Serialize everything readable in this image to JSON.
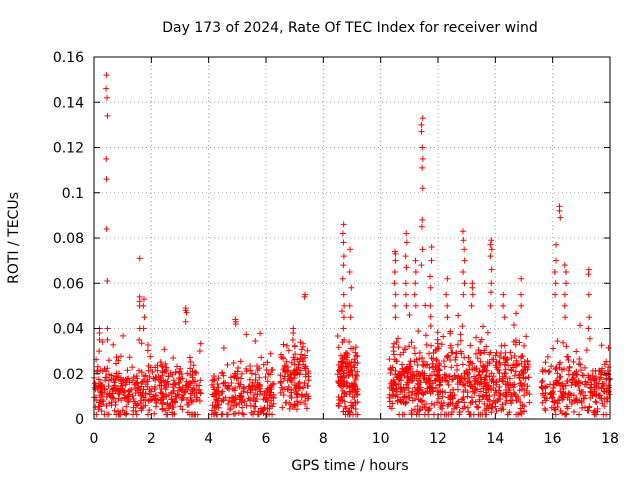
{
  "chart_data": {
    "type": "scatter",
    "title": "Day 173 of 2024, Rate Of TEC Index for receiver wind",
    "xlabel": "GPS time / hours",
    "ylabel": "ROTI / TECUs",
    "xlim": [
      0,
      18
    ],
    "ylim": [
      0,
      0.16
    ],
    "xticks": [
      0,
      2,
      4,
      6,
      8,
      10,
      12,
      14,
      16,
      18
    ],
    "xtick_labels": [
      "0",
      "2",
      "4",
      "6",
      "8",
      "10",
      "12",
      "14",
      "16",
      "18"
    ],
    "yticks": [
      0,
      0.02,
      0.04,
      0.06,
      0.08,
      0.1,
      0.12,
      0.14,
      0.16
    ],
    "ytick_labels": [
      "0",
      "0.02",
      "0.04",
      "0.06",
      "0.08",
      "0.1",
      "0.12",
      "0.14",
      "0.16"
    ],
    "grid": true,
    "marker": "+",
    "color": "#ff0000",
    "series": [
      {
        "name": "ROTI",
        "clusters": [
          {
            "x0": 0.0,
            "x1": 3.75,
            "base": 0.012,
            "spread": 0.009,
            "n": 420
          },
          {
            "x0": 4.1,
            "x1": 6.3,
            "base": 0.011,
            "spread": 0.008,
            "n": 230
          },
          {
            "x0": 6.5,
            "x1": 7.5,
            "base": 0.016,
            "spread": 0.01,
            "n": 140
          },
          {
            "x0": 8.5,
            "x1": 9.2,
            "base": 0.016,
            "spread": 0.012,
            "n": 150
          },
          {
            "x0": 10.3,
            "x1": 15.2,
            "base": 0.016,
            "spread": 0.012,
            "n": 700
          },
          {
            "x0": 15.6,
            "x1": 18.0,
            "base": 0.013,
            "spread": 0.009,
            "n": 260
          }
        ],
        "peaks": [
          {
            "x": 0.45,
            "y": [
              0.152,
              0.146,
              0.142,
              0.134,
              0.115,
              0.106,
              0.084,
              0.061,
              0.04,
              0.035
            ]
          },
          {
            "x": 0.2,
            "y": [
              0.04,
              0.038,
              0.035,
              0.03
            ]
          },
          {
            "x": 1.6,
            "y": [
              0.071,
              0.054,
              0.052,
              0.05,
              0.04,
              0.035
            ]
          },
          {
            "x": 1.75,
            "y": [
              0.053,
              0.05,
              0.045,
              0.04
            ]
          },
          {
            "x": 3.2,
            "y": [
              0.049,
              0.048,
              0.047,
              0.043
            ]
          },
          {
            "x": 4.95,
            "y": [
              0.044,
              0.043,
              0.042
            ]
          },
          {
            "x": 7.35,
            "y": [
              0.055,
              0.054
            ]
          },
          {
            "x": 6.95,
            "y": [
              0.04,
              0.038,
              0.035
            ]
          },
          {
            "x": 8.7,
            "y": [
              0.086,
              0.082,
              0.078,
              0.072,
              0.068,
              0.062,
              0.055,
              0.05,
              0.045,
              0.04,
              0.035
            ]
          },
          {
            "x": 8.95,
            "y": [
              0.075,
              0.065,
              0.058,
              0.05,
              0.045
            ]
          },
          {
            "x": 10.5,
            "y": [
              0.074,
              0.073,
              0.07,
              0.065,
              0.06,
              0.055,
              0.05,
              0.045
            ]
          },
          {
            "x": 10.9,
            "y": [
              0.082,
              0.078,
              0.072,
              0.067,
              0.06,
              0.055,
              0.05
            ]
          },
          {
            "x": 11.45,
            "y": [
              0.133,
              0.13,
              0.127,
              0.12,
              0.115,
              0.111,
              0.102,
              0.088,
              0.085,
              0.075,
              0.068
            ]
          },
          {
            "x": 11.2,
            "y": [
              0.07,
              0.065,
              0.06,
              0.055,
              0.05
            ]
          },
          {
            "x": 11.75,
            "y": [
              0.076,
              0.07,
              0.063,
              0.058,
              0.05
            ]
          },
          {
            "x": 12.3,
            "y": [
              0.062,
              0.055,
              0.05,
              0.045
            ]
          },
          {
            "x": 12.9,
            "y": [
              0.083,
              0.079,
              0.075,
              0.07,
              0.065,
              0.06,
              0.055
            ]
          },
          {
            "x": 13.2,
            "y": [
              0.06,
              0.058,
              0.055,
              0.05
            ]
          },
          {
            "x": 13.85,
            "y": [
              0.079,
              0.077,
              0.075,
              0.072,
              0.066,
              0.06,
              0.056,
              0.05
            ]
          },
          {
            "x": 14.3,
            "y": [
              0.055,
              0.05,
              0.045
            ]
          },
          {
            "x": 14.9,
            "y": [
              0.062,
              0.055,
              0.05
            ]
          },
          {
            "x": 16.25,
            "y": [
              0.094,
              0.092,
              0.089
            ]
          },
          {
            "x": 16.1,
            "y": [
              0.077,
              0.07,
              0.065,
              0.06,
              0.055
            ]
          },
          {
            "x": 16.45,
            "y": [
              0.068,
              0.065,
              0.06,
              0.055,
              0.05,
              0.045
            ]
          },
          {
            "x": 17.25,
            "y": [
              0.066,
              0.064,
              0.055,
              0.045,
              0.04
            ]
          }
        ]
      }
    ]
  }
}
